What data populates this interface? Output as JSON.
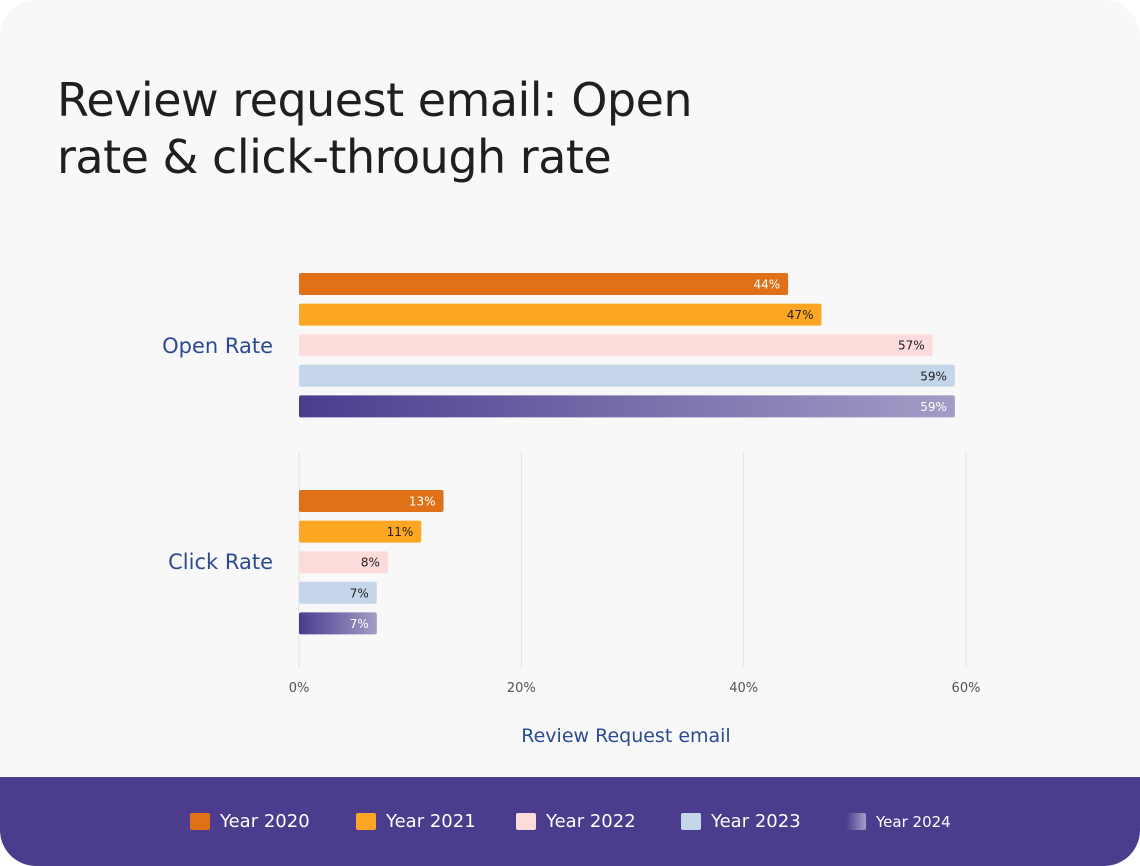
{
  "title": "Review request email: Open rate & click-through rate",
  "chart_data": {
    "type": "bar",
    "orientation": "horizontal",
    "categories": [
      "Open Rate",
      "Click Rate"
    ],
    "series": [
      {
        "name": "Year 2020",
        "values": [
          44,
          13
        ],
        "labels": [
          "44%",
          "13%"
        ],
        "color": "#e07119",
        "label_color": "#ffffff"
      },
      {
        "name": "Year 2021",
        "values": [
          47,
          11
        ],
        "labels": [
          "47%",
          "11%"
        ],
        "color": "#fca623",
        "label_color": "#1f1f1f"
      },
      {
        "name": "Year 2022",
        "values": [
          57,
          8
        ],
        "labels": [
          "57%",
          "8%"
        ],
        "color": "#fbdcdb",
        "label_color": "#1f1f1f"
      },
      {
        "name": "Year 2023",
        "values": [
          59,
          7
        ],
        "labels": [
          "59%",
          "7%"
        ],
        "color": "#c5d6ea",
        "label_color": "#1f1f1f"
      },
      {
        "name": "Year 2024",
        "values": [
          59,
          7
        ],
        "labels": [
          "59%",
          "7%"
        ],
        "color": "#4b3c8e",
        "gradient_end": "#a49cc6",
        "label_color": "#ffffff"
      }
    ],
    "x_ticks": [
      0,
      20,
      40,
      60
    ],
    "x_tick_labels": [
      "0%",
      "20%",
      "40%",
      "60%"
    ],
    "xlabel": "Review Request email",
    "xlim": [
      0,
      60
    ],
    "grid": true,
    "legend_position": "bottom"
  },
  "colors": {
    "background": "#f8f8f8",
    "legend_background": "#4b3c8e",
    "category_label": "#2c4a8f",
    "grid": "#e2e2e2",
    "tick_label": "#555555"
  }
}
